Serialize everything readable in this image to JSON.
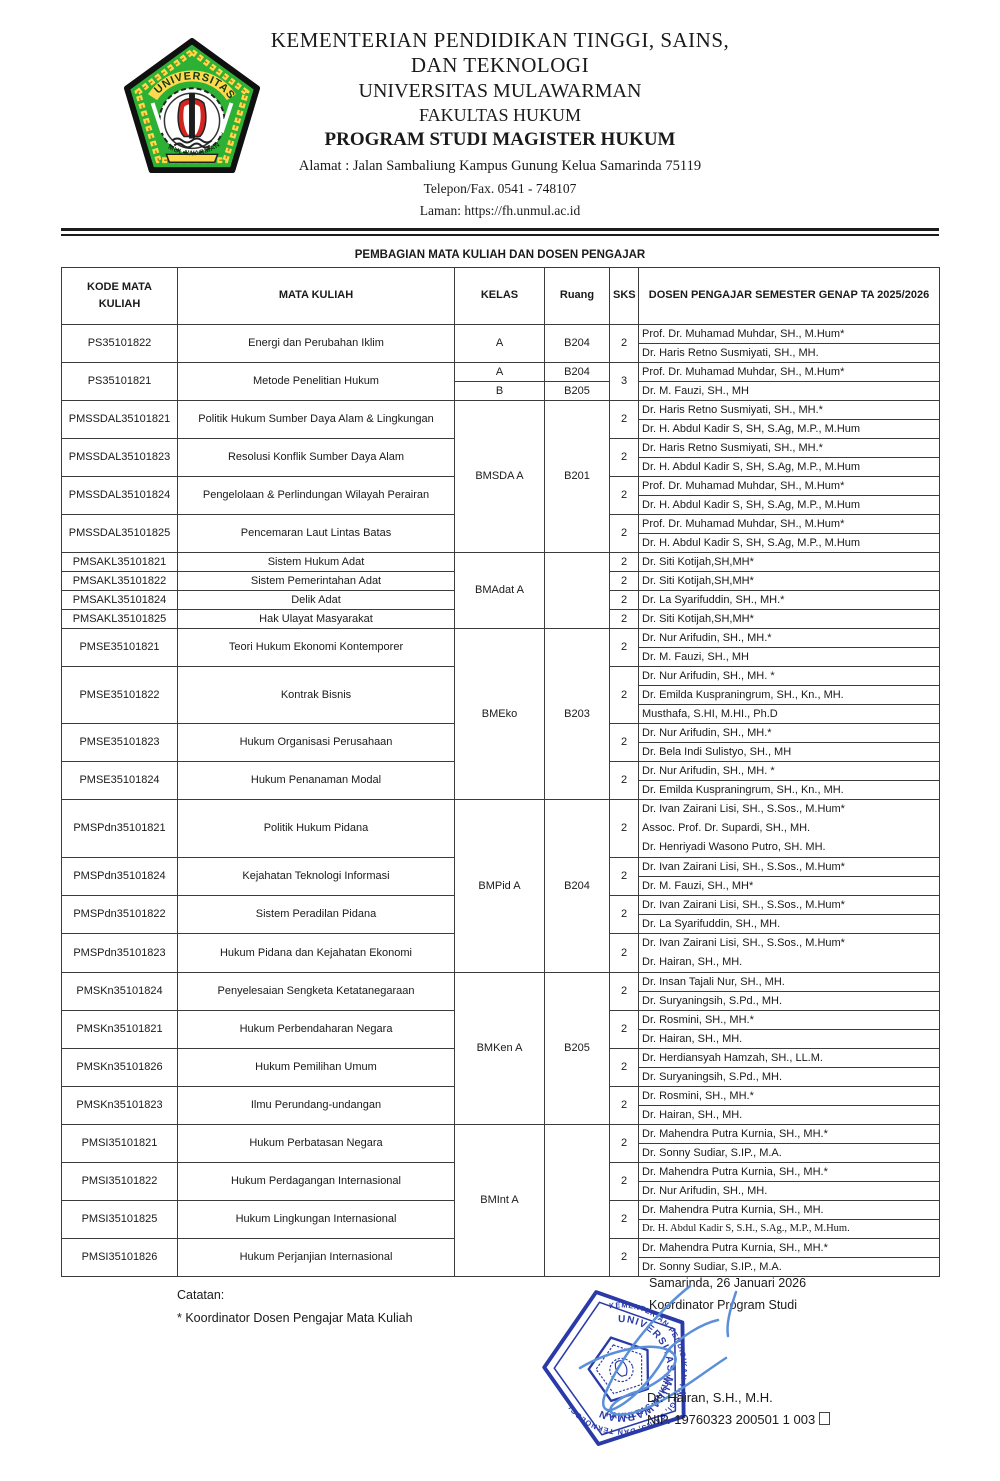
{
  "letterhead": {
    "ministry_line1": "KEMENTERIAN PENDIDIKAN TINGGI, SAINS,",
    "ministry_line2": "DAN TEKNOLOGI",
    "university": "UNIVERSITAS MULAWARMAN",
    "faculty": "FAKULTAS HUKUM",
    "program": "PROGRAM STUDI MAGISTER HUKUM",
    "address": "Alamat : Jalan Sambaliung Kampus Gunung Kelua Samarinda 75119",
    "phone": "Telepon/Fax. 0541 - 748107",
    "website": "Laman: https://fh.unmul.ac.id",
    "logo": {
      "arc_top_text": "UNIVERSITAS",
      "banner_bottom_text": "MULAWARMAN",
      "colors": {
        "green": "#2db135",
        "dark_green": "#148c27",
        "yellow": "#ffd94d",
        "outline": "#101010",
        "red": "#d42420",
        "white": "#ffffff"
      }
    }
  },
  "document": {
    "title": "PEMBAGIAN MATA KULIAH DAN DOSEN PENGAJAR",
    "columns": [
      "KODE MATA KULIAH",
      "MATA KULIAH",
      "KELAS",
      "Ruang",
      "SKS",
      "DOSEN PENGAJAR SEMESTER GENAP TA 2025/2026"
    ],
    "groups": [
      {
        "kelas": "A",
        "ruang": "B204",
        "courses": [
          {
            "code": "PS35101822",
            "name": "Energi dan Perubahan Iklim",
            "sks": "2",
            "dosen": [
              {
                "t": "Prof. Dr. Muhamad Muhdar, SH., M.Hum*"
              },
              {
                "t": "Dr. Haris Retno Susmiyati, SH., MH."
              }
            ]
          }
        ]
      },
      {
        "kelas_rows": [
          {
            "kelas": "A",
            "ruang": "B204"
          },
          {
            "kelas": "B",
            "ruang": "B205"
          }
        ],
        "courses": [
          {
            "code": "PS35101821",
            "name": "Metode Penelitian Hukum",
            "sks": "3",
            "dosen": [
              {
                "t": "Prof. Dr. Muhamad Muhdar, SH., M.Hum*"
              },
              {
                "t": "Dr. M. Fauzi, SH., MH"
              }
            ]
          }
        ]
      },
      {
        "kelas": "BMSDA A",
        "ruang": "B201",
        "courses": [
          {
            "code": "PMSSDAL35101821",
            "name": "Politik Hukum Sumber Daya Alam & Lingkungan",
            "sks": "2",
            "dosen": [
              {
                "t": "Dr. Haris Retno Susmiyati, SH., MH.*"
              },
              {
                "t": "Dr. H. Abdul Kadir S, SH, S.Ag, M.P., M.Hum"
              }
            ]
          },
          {
            "code": "PMSSDAL35101823",
            "name": "Resolusi Konflik Sumber Daya Alam",
            "sks": "2",
            "dosen": [
              {
                "t": "Dr. Haris Retno Susmiyati, SH., MH.*"
              },
              {
                "t": "Dr. H. Abdul Kadir S, SH, S.Ag, M.P., M.Hum"
              }
            ]
          },
          {
            "code": "PMSSDAL35101824",
            "name": "Pengelolaan & Perlindungan Wilayah Perairan",
            "sks": "2",
            "dosen": [
              {
                "t": "Prof. Dr. Muhamad Muhdar, SH., M.Hum*"
              },
              {
                "t": "Dr. H. Abdul Kadir S, SH, S.Ag, M.P., M.Hum"
              }
            ]
          },
          {
            "code": "PMSSDAL35101825",
            "name": "Pencemaran Laut Lintas Batas",
            "sks": "2",
            "dosen": [
              {
                "t": "Prof. Dr. Muhamad Muhdar, SH., M.Hum*"
              },
              {
                "t": "Dr. H. Abdul Kadir S, SH, S.Ag, M.P., M.Hum"
              }
            ]
          }
        ]
      },
      {
        "kelas": "BMAdat A",
        "ruang": "",
        "courses": [
          {
            "code": "PMSAKL35101821",
            "name": "Sistem Hukum Adat",
            "sks": "2",
            "dosen": [
              {
                "t": "Dr. Siti Kotijah,SH,MH*"
              }
            ]
          },
          {
            "code": "PMSAKL35101822",
            "name": "Sistem Pemerintahan Adat",
            "sks": "2",
            "dosen": [
              {
                "t": "Dr. Siti Kotijah,SH,MH*"
              }
            ]
          },
          {
            "code": "PMSAKL35101824",
            "name": "Delik Adat",
            "sks": "2",
            "dosen": [
              {
                "t": "Dr. La Syarifuddin, SH., MH.*"
              }
            ]
          },
          {
            "code": "PMSAKL35101825",
            "name": "Hak Ulayat Masyarakat",
            "sks": "2",
            "dosen": [
              {
                "t": "Dr. Siti Kotijah,SH,MH*"
              }
            ]
          }
        ]
      },
      {
        "kelas": "BMEko",
        "ruang": "B203",
        "courses": [
          {
            "code": "PMSE35101821",
            "name": "Teori Hukum Ekonomi Kontemporer",
            "sks": "2",
            "dosen": [
              {
                "t": "Dr. Nur Arifudin, SH., MH.*"
              },
              {
                "t": "Dr. M. Fauzi, SH., MH"
              }
            ]
          },
          {
            "code": "PMSE35101822",
            "name": "Kontrak Bisnis",
            "sks": "2",
            "dosen": [
              {
                "t": "Dr. Nur Arifudin, SH., MH. *"
              },
              {
                "t": "Dr. Emilda Kuspraningrum, SH., Kn., MH."
              },
              {
                "t": "Musthafa, S.HI, M.HI., Ph.D"
              }
            ]
          },
          {
            "code": "PMSE35101823",
            "name": "Hukum Organisasi Perusahaan",
            "sks": "2",
            "dosen": [
              {
                "t": "Dr. Nur Arifudin, SH., MH.*"
              },
              {
                "t": "Dr. Bela Indi Sulistyo, SH., MH"
              }
            ]
          },
          {
            "code": "PMSE35101824",
            "name": "Hukum Penanaman Modal",
            "sks": "2",
            "dosen": [
              {
                "t": "Dr. Nur Arifudin, SH., MH. *"
              },
              {
                "t": "Dr. Emilda Kuspraningrum, SH., Kn., MH."
              }
            ]
          }
        ]
      },
      {
        "kelas": "BMPid A",
        "ruang": "B204",
        "courses": [
          {
            "code": "PMSPdn35101821",
            "name": "Politik Hukum Pidana",
            "sks": "2",
            "merged": true,
            "dosen": [
              {
                "t": "Dr. Ivan Zairani Lisi, SH., S.Sos., M.Hum*"
              },
              {
                "t": "Assoc. Prof. Dr. Supardi, SH., MH."
              },
              {
                "t": " Dr. Henriyadi Wasono Putro, SH. MH."
              }
            ]
          },
          {
            "code": "PMSPdn35101824",
            "name": "Kejahatan Teknologi Informasi",
            "sks": "2",
            "dosen": [
              {
                "t": "Dr. Ivan Zairani Lisi, SH., S.Sos., M.Hum*"
              },
              {
                "t": "Dr. M. Fauzi, SH., MH*"
              }
            ]
          },
          {
            "code": "PMSPdn35101822",
            "name": "Sistem Peradilan Pidana",
            "sks": "2",
            "dosen": [
              {
                "t": "Dr. Ivan Zairani Lisi, SH., S.Sos., M.Hum*"
              },
              {
                "t": "Dr. La Syarifuddin, SH., MH."
              }
            ]
          },
          {
            "code": "PMSPdn35101823",
            "name": "Hukum Pidana dan Kejahatan Ekonomi",
            "sks": "2",
            "merged": true,
            "dosen": [
              {
                "t": "Dr. Ivan Zairani Lisi, SH., S.Sos., M.Hum*"
              },
              {
                "t": "Dr. Hairan, SH., MH."
              }
            ]
          }
        ]
      },
      {
        "kelas": "BMKen A",
        "ruang": "B205",
        "courses": [
          {
            "code": "PMSKn35101824",
            "name": "Penyelesaian Sengketa Ketatanegaraan",
            "sks": "2",
            "dosen": [
              {
                "t": "Dr. Insan Tajali Nur, SH., MH."
              },
              {
                "t": "Dr. Suryaningsih, S.Pd., MH."
              }
            ]
          },
          {
            "code": "PMSKn35101821",
            "name": "Hukum Perbendaharan Negara",
            "sks": "2",
            "dosen": [
              {
                "t": "Dr. Rosmini, SH., MH.*"
              },
              {
                "t": "Dr. Hairan, SH., MH."
              }
            ]
          },
          {
            "code": "PMSKn35101826",
            "name": "Hukum Pemilihan Umum",
            "sks": "2",
            "dosen": [
              {
                "t": "Dr. Herdiansyah Hamzah, SH., LL.M."
              },
              {
                "t": "Dr. Suryaningsih, S.Pd., MH."
              }
            ]
          },
          {
            "code": "PMSKn35101823",
            "name": "Ilmu Perundang-undangan",
            "sks": "2",
            "dosen": [
              {
                "t": "Dr. Rosmini, SH., MH.*"
              },
              {
                "t": "Dr. Hairan, SH., MH."
              }
            ]
          }
        ]
      },
      {
        "kelas": "BMInt A",
        "ruang": "",
        "courses": [
          {
            "code": "PMSI35101821",
            "name": "Hukum Perbatasan Negara",
            "sks": "2",
            "dosen": [
              {
                "t": "Dr. Mahendra Putra Kurnia, SH., MH.*"
              },
              {
                "t": "Dr. Sonny Sudiar, S.IP., M.A."
              }
            ]
          },
          {
            "code": "PMSI35101822",
            "name": "Hukum Perdagangan Internasional",
            "sks": "2",
            "dosen": [
              {
                "t": "Dr. Mahendra Putra Kurnia, SH., MH.*"
              },
              {
                "t": "Dr. Nur Arifudin, SH., MH."
              }
            ]
          },
          {
            "code": "PMSI35101825",
            "name": "Hukum Lingkungan Internasional",
            "sks": "2",
            "dosen": [
              {
                "t": "Dr. Mahendra Putra Kurnia, SH., MH."
              },
              {
                "t": "Dr. H. Abdul Kadir S, S.H., S.Ag., M.P., M.Hum.",
                "serif": true
              }
            ]
          },
          {
            "code": "PMSI35101826",
            "name": "Hukum Perjanjian Internasional",
            "sks": "2",
            "dosen": [
              {
                "t": "Dr. Mahendra Putra Kurnia, SH., MH.*"
              },
              {
                "t": "Dr. Sonny Sudiar, S.IP., M.A."
              }
            ]
          }
        ]
      }
    ]
  },
  "notes": {
    "label": "Catatan:",
    "note1": "* Koordinator Dosen Pengajar Mata Kuliah"
  },
  "signature": {
    "place_date": "Samarinda,  26 Januari 2026",
    "role": "Koordinator Program Studi",
    "name": "Dr. Hairan, S.H., M.H.",
    "nip": "NIP. 19760323 200501 1 003",
    "stamp": {
      "ring_text": "KEMENTERIAN PENDIDIKAN TINGGI, SAINS, DAN TEKNOLOGI",
      "inner_text": "UNIVERSITAS MULAWARMAN",
      "bottom_text": "FAKULTAS HUKUM"
    },
    "colors": {
      "stamp": "#2a3aa8",
      "signature": "#5b8fd9"
    }
  }
}
